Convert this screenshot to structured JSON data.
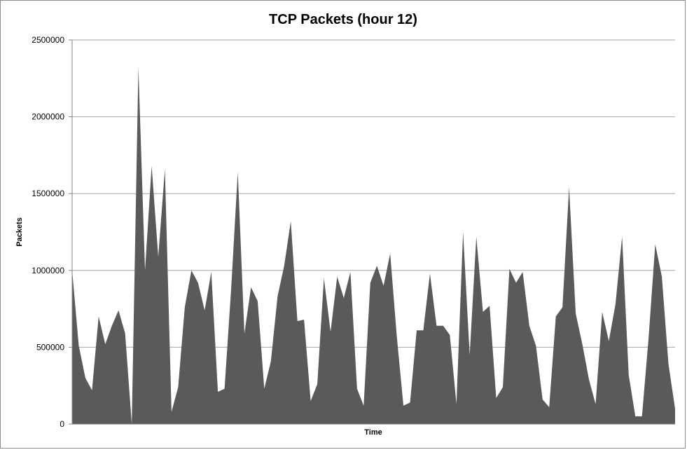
{
  "chart_data": {
    "type": "area",
    "title": "TCP Packets (hour 12)",
    "xlabel": "Time",
    "ylabel": "Packets",
    "ylim": [
      0,
      2500000
    ],
    "yticks": [
      "0",
      "500000",
      "1000000",
      "1500000",
      "2000000",
      "2500000"
    ],
    "grid": true,
    "legend": "none",
    "colors": {
      "fill": "#5a5a5a",
      "grid": "#a6a6a6",
      "axis": "#868686"
    },
    "series": [
      {
        "values": [
          1000000,
          510000,
          300000,
          220000,
          700000,
          520000,
          640000,
          740000,
          590000,
          0,
          2320000,
          1000000,
          1680000,
          1090000,
          1660000,
          80000,
          240000,
          760000,
          1000000,
          920000,
          740000,
          990000,
          210000,
          230000,
          880000,
          1640000,
          590000,
          890000,
          800000,
          230000,
          410000,
          830000,
          1030000,
          1320000,
          670000,
          680000,
          150000,
          260000,
          950000,
          600000,
          960000,
          820000,
          990000,
          230000,
          120000,
          920000,
          1030000,
          900000,
          1110000,
          570000,
          120000,
          140000,
          610000,
          610000,
          980000,
          640000,
          640000,
          580000,
          130000,
          1250000,
          450000,
          1220000,
          730000,
          770000,
          170000,
          240000,
          1010000,
          920000,
          990000,
          640000,
          510000,
          160000,
          110000,
          700000,
          760000,
          1540000,
          720000,
          520000,
          290000,
          130000,
          730000,
          540000,
          780000,
          1220000,
          320000,
          50000,
          50000,
          560000,
          1170000,
          960000,
          390000,
          100000
        ]
      }
    ]
  }
}
